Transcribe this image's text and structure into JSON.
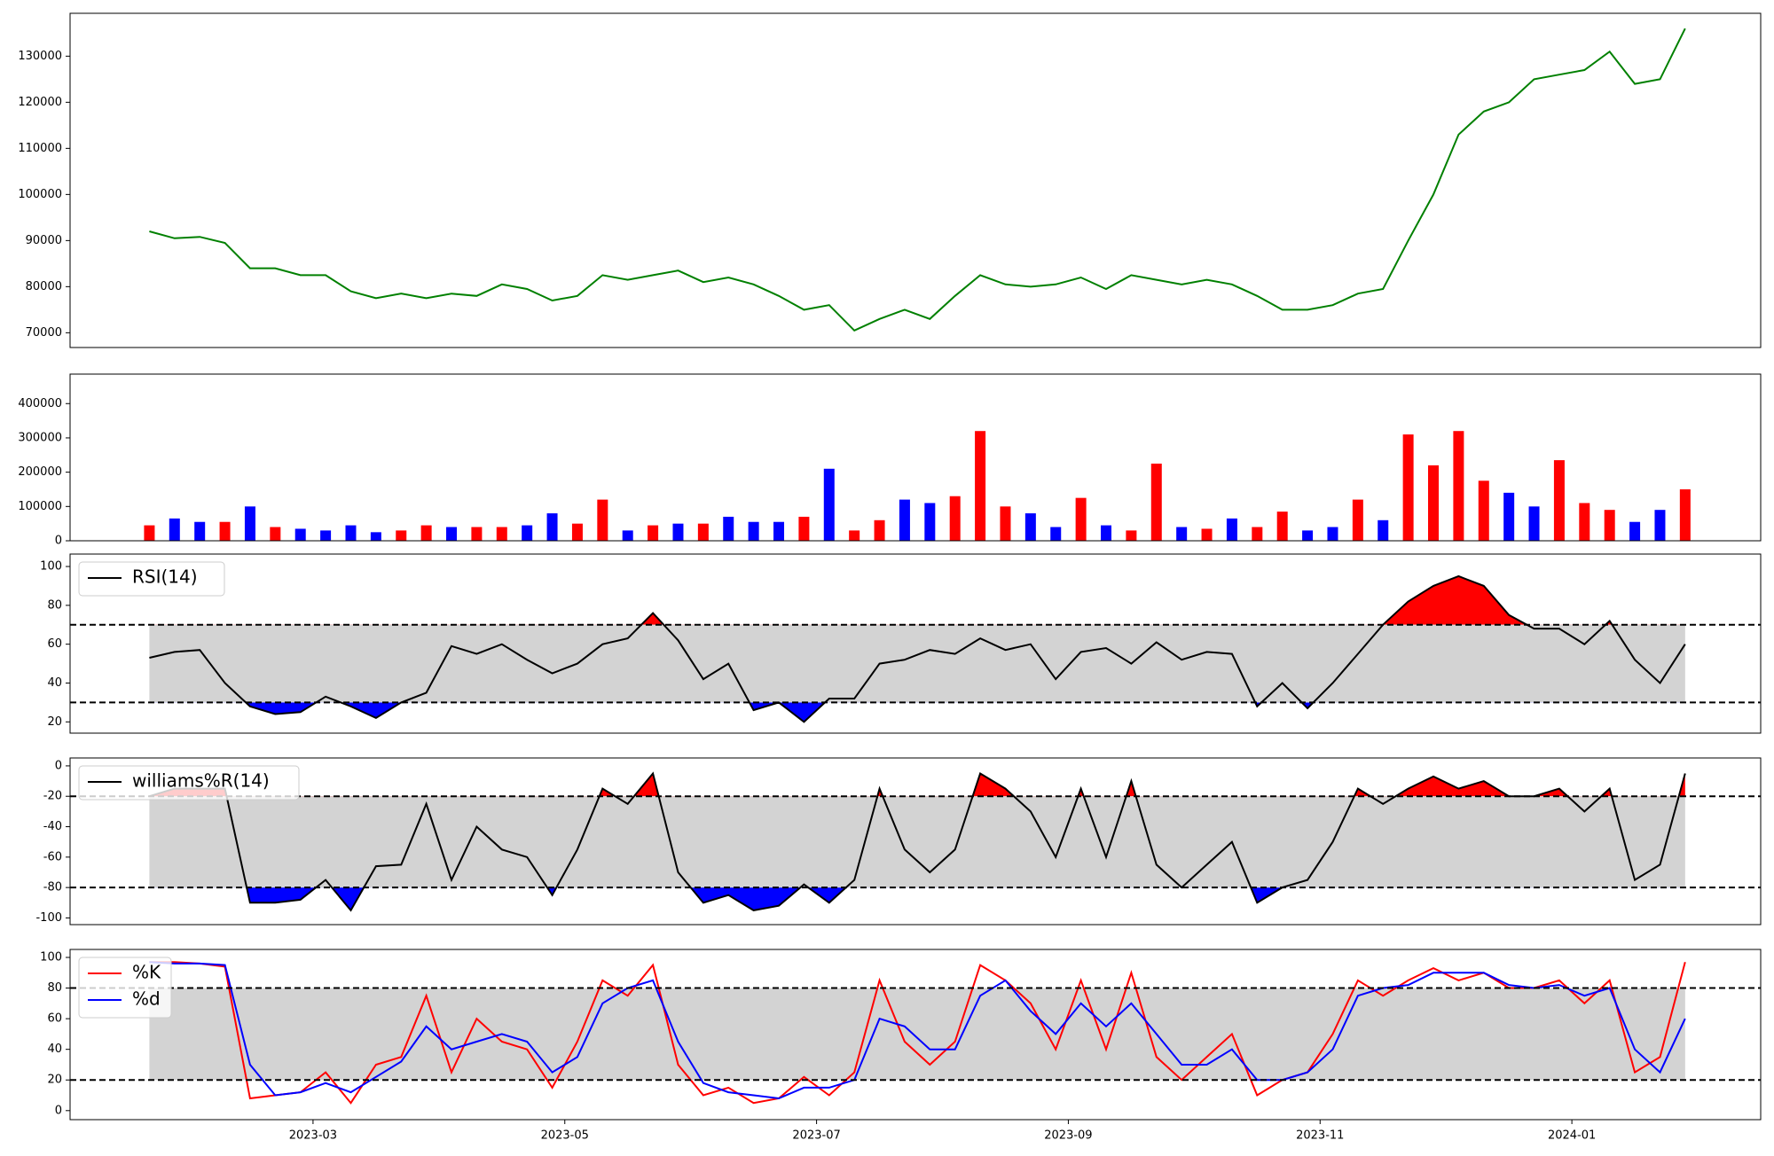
{
  "chart_data": [
    {
      "type": "line",
      "color": "#008000",
      "x": [
        1.7,
        1.9,
        2.1,
        2.3,
        2.5,
        2.7,
        2.9,
        3.1,
        3.3,
        3.5,
        3.7,
        3.9,
        4.1,
        4.3,
        4.5,
        4.7,
        4.9,
        5.1,
        5.3,
        5.5,
        5.7,
        5.9,
        6.1,
        6.3,
        6.5,
        6.7,
        6.9,
        7.1,
        7.3,
        7.5,
        7.7,
        7.9,
        8.1,
        8.3,
        8.5,
        8.7,
        8.9,
        9.1,
        9.3,
        9.5,
        9.7,
        9.9,
        10.1,
        10.3,
        10.5,
        10.7,
        10.9,
        11.1,
        11.3,
        11.5,
        11.7,
        11.9,
        12.1,
        12.3,
        12.5,
        12.7,
        12.9,
        13.1,
        13.3,
        13.5,
        13.7,
        13.9
      ],
      "values": [
        92000,
        90500,
        90800,
        89500,
        84000,
        84000,
        82500,
        82500,
        79000,
        77500,
        78500,
        77500,
        78500,
        78000,
        80500,
        79500,
        77000,
        78000,
        82500,
        81500,
        82500,
        83500,
        81000,
        82000,
        80500,
        78000,
        75000,
        76000,
        70500,
        73000,
        75000,
        73000,
        78000,
        82500,
        80500,
        80000,
        80500,
        82000,
        79500,
        82500,
        81500,
        80500,
        81500,
        80500,
        78000,
        75000,
        75000,
        76000,
        78500,
        79500,
        90000,
        100000,
        113000,
        118000,
        120000,
        125000,
        126000,
        127000,
        131000,
        124000,
        125000,
        136000
      ],
      "ylim": [
        66800,
        139300
      ],
      "yticks": [
        70000,
        80000,
        90000,
        100000,
        110000,
        120000,
        130000
      ]
    },
    {
      "type": "bar",
      "values": [
        45000,
        65000,
        55000,
        55000,
        100000,
        40000,
        35000,
        30000,
        45000,
        25000,
        30000,
        45000,
        40000,
        40000,
        40000,
        45000,
        80000,
        50000,
        120000,
        30000,
        45000,
        50000,
        50000,
        70000,
        55000,
        55000,
        70000,
        210000,
        30000,
        60000,
        120000,
        110000,
        130000,
        320000,
        100000,
        80000,
        40000,
        125000,
        45000,
        30000,
        225000,
        40000,
        35000,
        65000,
        40000,
        85000,
        30000,
        40000,
        120000,
        60000,
        310000,
        220000,
        320000,
        175000,
        140000,
        100000,
        235000,
        110000,
        90000,
        55000,
        90000,
        150000
      ],
      "colors": [
        "#ff0000",
        "#0000ff",
        "#0000ff",
        "#ff0000",
        "#0000ff",
        "#ff0000",
        "#0000ff",
        "#0000ff",
        "#0000ff",
        "#0000ff",
        "#ff0000",
        "#ff0000",
        "#0000ff",
        "#ff0000",
        "#ff0000",
        "#0000ff",
        "#0000ff",
        "#ff0000",
        "#ff0000",
        "#0000ff",
        "#ff0000",
        "#0000ff",
        "#ff0000",
        "#0000ff",
        "#0000ff",
        "#0000ff",
        "#ff0000",
        "#0000ff",
        "#ff0000",
        "#ff0000",
        "#0000ff",
        "#0000ff",
        "#ff0000",
        "#ff0000",
        "#ff0000",
        "#0000ff",
        "#0000ff",
        "#ff0000",
        "#0000ff",
        "#ff0000",
        "#ff0000",
        "#0000ff",
        "#ff0000",
        "#0000ff",
        "#ff0000",
        "#ff0000",
        "#0000ff",
        "#0000ff",
        "#ff0000",
        "#0000ff",
        "#ff0000",
        "#ff0000",
        "#ff0000",
        "#ff0000",
        "#0000ff",
        "#0000ff",
        "#ff0000",
        "#ff0000",
        "#ff0000",
        "#0000ff",
        "#0000ff",
        "#ff0000"
      ],
      "ylim": [
        0,
        486000
      ],
      "yticks": [
        0,
        100000,
        200000,
        300000,
        400000
      ]
    },
    {
      "type": "line",
      "legend": "upper left",
      "thresholds": [
        30,
        70
      ],
      "band_color": "#d3d3d3",
      "fill_extremes": true,
      "over_color": "#ff0000",
      "under_color": "#0000ff",
      "series": [
        {
          "name": "RSI(14)",
          "color": "#000000",
          "values": [
            53,
            56,
            57,
            40,
            28,
            24,
            25,
            33,
            28,
            22,
            30,
            35,
            59,
            55,
            60,
            52,
            45,
            50,
            60,
            63,
            76,
            62,
            42,
            50,
            26,
            30,
            20,
            32,
            32,
            50,
            52,
            57,
            55,
            63,
            57,
            60,
            42,
            56,
            58,
            50,
            61,
            52,
            56,
            55,
            28,
            40,
            27,
            40,
            55,
            70,
            82,
            90,
            95,
            90,
            75,
            68,
            68,
            60,
            72,
            52,
            40,
            60
          ]
        }
      ],
      "ylim": [
        14.2,
        106.4
      ],
      "yticks": [
        20,
        40,
        60,
        80,
        100
      ]
    },
    {
      "type": "line",
      "legend": "upper left",
      "thresholds": [
        -80,
        -20
      ],
      "band_color": "#d3d3d3",
      "fill_extremes": true,
      "over_color": "#ff0000",
      "under_color": "#0000ff",
      "series": [
        {
          "name": "williams%R(14)",
          "color": "#000000",
          "values": [
            -20,
            -15,
            -15,
            -15,
            -90,
            -90,
            -88,
            -75,
            -95,
            -66,
            -65,
            -25,
            -75,
            -40,
            -55,
            -60,
            -85,
            -55,
            -15,
            -25,
            -5,
            -70,
            -90,
            -85,
            -95,
            -92,
            -78,
            -90,
            -75,
            -15,
            -55,
            -70,
            -55,
            -5,
            -15,
            -30,
            -60,
            -15,
            -60,
            -10,
            -65,
            -80,
            -65,
            -50,
            -90,
            -80,
            -75,
            -50,
            -15,
            -25,
            -15,
            -7,
            -15,
            -10,
            -20,
            -20,
            -15,
            -30,
            -15,
            -75,
            -65,
            -5
          ]
        }
      ],
      "ylim": [
        -104.4,
        5.2
      ],
      "yticks": [
        -100,
        -80,
        -60,
        -40,
        -20,
        0
      ]
    },
    {
      "type": "line",
      "legend": "upper left",
      "thresholds": [
        20,
        80
      ],
      "band_color": "#d3d3d3",
      "fill_extremes": false,
      "series": [
        {
          "name": "%K",
          "color": "#ff0000",
          "values": [
            97,
            97,
            96,
            94,
            8,
            10,
            12,
            25,
            5,
            30,
            35,
            75,
            25,
            60,
            45,
            40,
            15,
            45,
            85,
            75,
            95,
            30,
            10,
            15,
            5,
            8,
            22,
            10,
            25,
            85,
            45,
            30,
            45,
            95,
            85,
            70,
            40,
            85,
            40,
            90,
            35,
            20,
            35,
            50,
            10,
            20,
            25,
            50,
            85,
            75,
            85,
            93,
            85,
            90,
            80,
            80,
            85,
            70,
            85,
            25,
            35,
            97
          ]
        },
        {
          "name": "%d",
          "color": "#0000ff",
          "values": [
            97,
            96,
            96,
            95,
            30,
            10,
            12,
            18,
            12,
            22,
            32,
            55,
            40,
            45,
            50,
            45,
            25,
            35,
            70,
            80,
            85,
            45,
            18,
            12,
            10,
            8,
            15,
            15,
            20,
            60,
            55,
            40,
            40,
            75,
            85,
            65,
            50,
            70,
            55,
            70,
            50,
            30,
            30,
            40,
            20,
            20,
            25,
            40,
            75,
            80,
            82,
            90,
            90,
            90,
            82,
            80,
            82,
            75,
            80,
            40,
            25,
            60
          ]
        }
      ],
      "ylim": [
        -5.9,
        105.2
      ],
      "yticks": [
        0,
        20,
        40,
        60,
        80,
        100
      ],
      "xlim": [
        1.07,
        14.5
      ],
      "xticks": [
        {
          "value": 3,
          "label": "2023-03"
        },
        {
          "value": 5,
          "label": "2023-05"
        },
        {
          "value": 7,
          "label": "2023-07"
        },
        {
          "value": 9,
          "label": "2023-09"
        },
        {
          "value": 11,
          "label": "2023-11"
        },
        {
          "value": 13,
          "label": "2024-01"
        }
      ]
    }
  ]
}
